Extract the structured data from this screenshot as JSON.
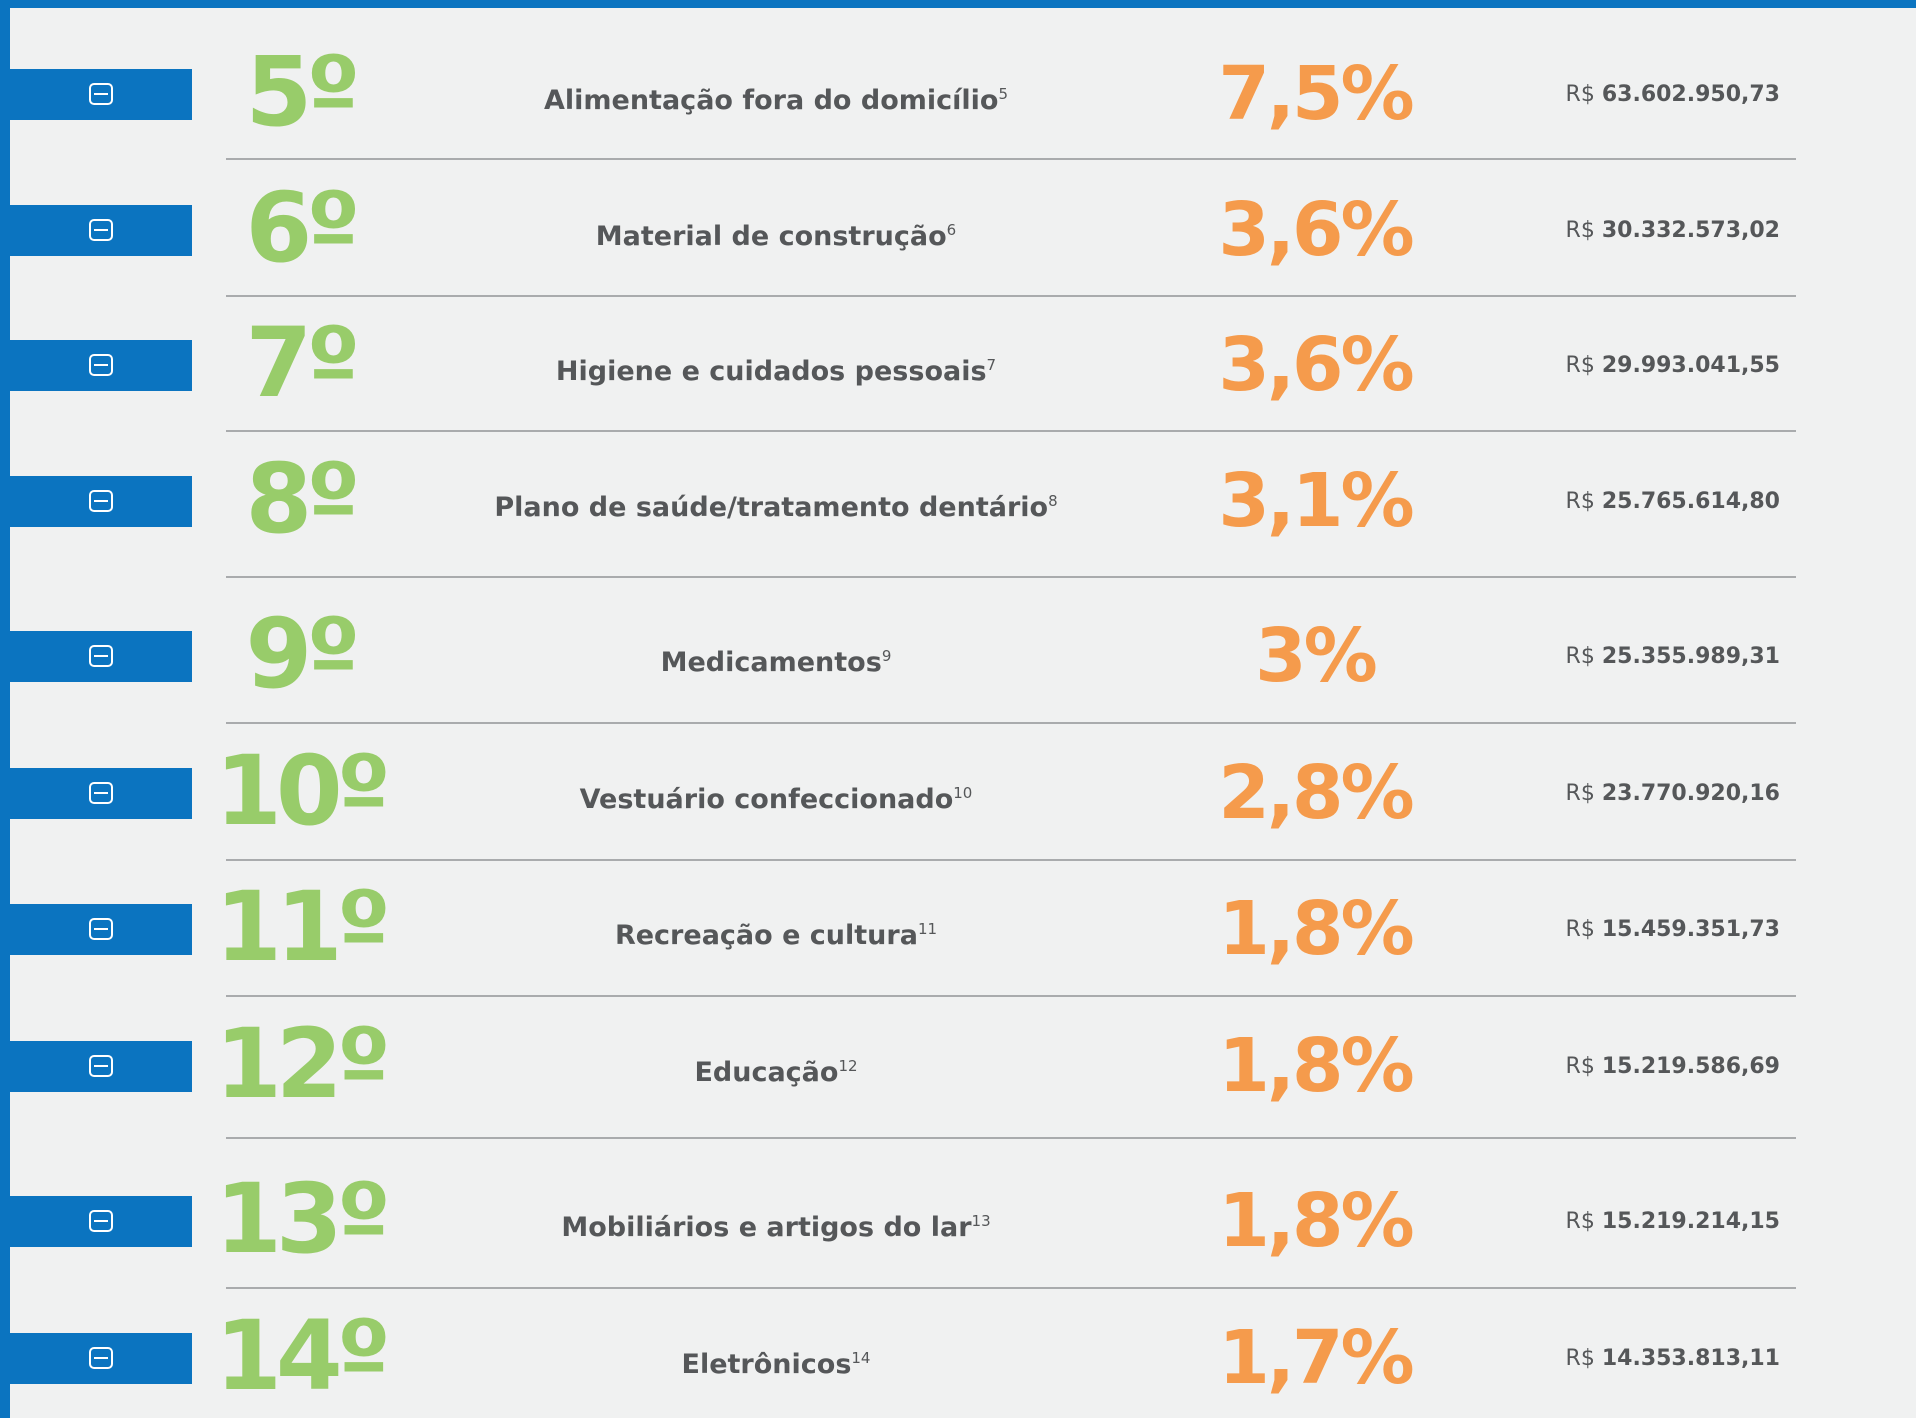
{
  "rows": [
    {
      "rank": "5º",
      "category": "Alimentação fora do domicílio",
      "note": "5",
      "share": "7,5%",
      "currency": "R$",
      "amount": "63.602.950,73"
    },
    {
      "rank": "6º",
      "category": "Material de construção",
      "note": "6",
      "share": "3,6%",
      "currency": "R$",
      "amount": "30.332.573,02"
    },
    {
      "rank": "7º",
      "category": "Higiene e cuidados pessoais",
      "note": "7",
      "share": "3,6%",
      "currency": "R$",
      "amount": "29.993.041,55"
    },
    {
      "rank": "8º",
      "category": "Plano de saúde/tratamento dentário",
      "note": "8",
      "share": "3,1%",
      "currency": "R$",
      "amount": "25.765.614,80"
    },
    {
      "rank": "9º",
      "category": "Medicamentos",
      "note": "9",
      "share": "3%",
      "currency": "R$",
      "amount": "25.355.989,31"
    },
    {
      "rank": "10º",
      "category": "Vestuário confeccionado",
      "note": "10",
      "share": "2,8%",
      "currency": "R$",
      "amount": "23.770.920,16"
    },
    {
      "rank": "11º",
      "category": "Recreação e cultura",
      "note": "11",
      "share": "1,8%",
      "currency": "R$",
      "amount": "15.459.351,73"
    },
    {
      "rank": "12º",
      "category": "Educação",
      "note": "12",
      "share": "1,8%",
      "currency": "R$",
      "amount": "15.219.586,69"
    },
    {
      "rank": "13º",
      "category": "Mobiliários e artigos do lar",
      "note": "13",
      "share": "1,8%",
      "currency": "R$",
      "amount": "15.219.214,15"
    },
    {
      "rank": "14º",
      "category": "Eletrônicos",
      "note": "14",
      "share": "1,7%",
      "currency": "R$",
      "amount": "14.353.813,11"
    }
  ]
}
